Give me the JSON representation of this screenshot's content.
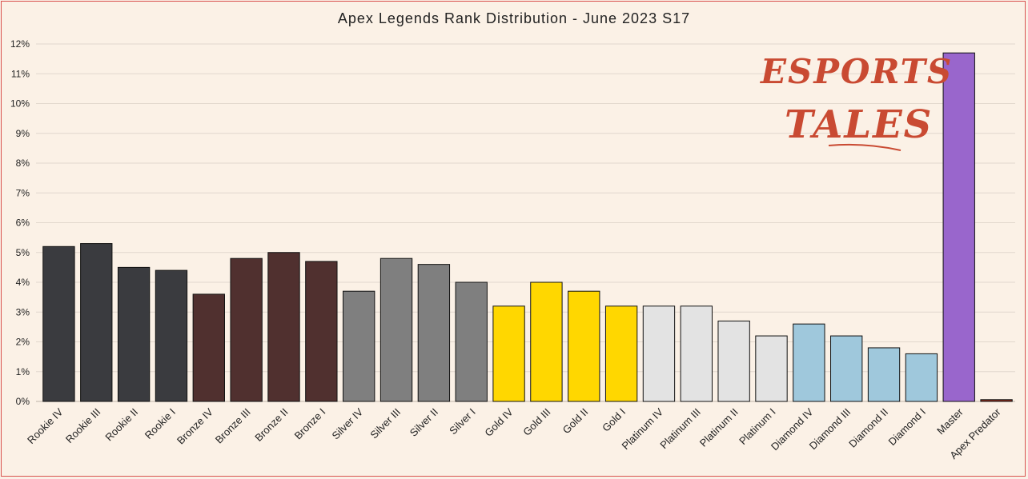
{
  "chart_data": {
    "type": "bar",
    "title": "Apex Legends Rank Distribution  - June 2023 S17",
    "xlabel": "",
    "ylabel": "",
    "ylim": [
      0,
      12
    ],
    "y_tick_labels": [
      "0%",
      "1%",
      "2%",
      "3%",
      "4%",
      "5%",
      "6%",
      "7%",
      "8%",
      "9%",
      "10%",
      "11%",
      "12%"
    ],
    "grid": true,
    "categories": [
      "Rookie IV",
      "Rookie III",
      "Rookie II",
      "Rookie I",
      "Bronze IV",
      "Bronze III",
      "Bronze II",
      "Bronze I",
      "Silver IV",
      "Silver III",
      "Silver II",
      "Silver I",
      "Gold IV",
      "Gold III",
      "Gold II",
      "Gold I",
      "Platinum IV",
      "Platinum III",
      "Platinum II",
      "Platinum I",
      "Diamond IV",
      "Diamond III",
      "Diamond II",
      "Diamond I",
      "Master",
      "Apex Predator"
    ],
    "values": [
      5.2,
      5.3,
      4.5,
      4.4,
      3.6,
      4.8,
      5.0,
      4.7,
      3.7,
      4.8,
      4.6,
      4.0,
      3.2,
      4.0,
      3.7,
      3.2,
      3.2,
      3.2,
      2.7,
      2.2,
      2.6,
      2.2,
      1.8,
      1.6,
      11.7,
      0.06
    ],
    "colors": [
      "#3a3b3f",
      "#3a3b3f",
      "#3a3b3f",
      "#3a3b3f",
      "#50302f",
      "#50302f",
      "#50302f",
      "#50302f",
      "#7f7f7f",
      "#7f7f7f",
      "#7f7f7f",
      "#7f7f7f",
      "#ffd700",
      "#ffd700",
      "#ffd700",
      "#ffd700",
      "#e3e3e3",
      "#e3e3e3",
      "#e3e3e3",
      "#e3e3e3",
      "#9fc8dc",
      "#9fc8dc",
      "#9fc8dc",
      "#9fc8dc",
      "#9966cc",
      "#8b2a1a"
    ]
  },
  "logo": {
    "line1": "ESPORTS",
    "line2": "TALES"
  }
}
